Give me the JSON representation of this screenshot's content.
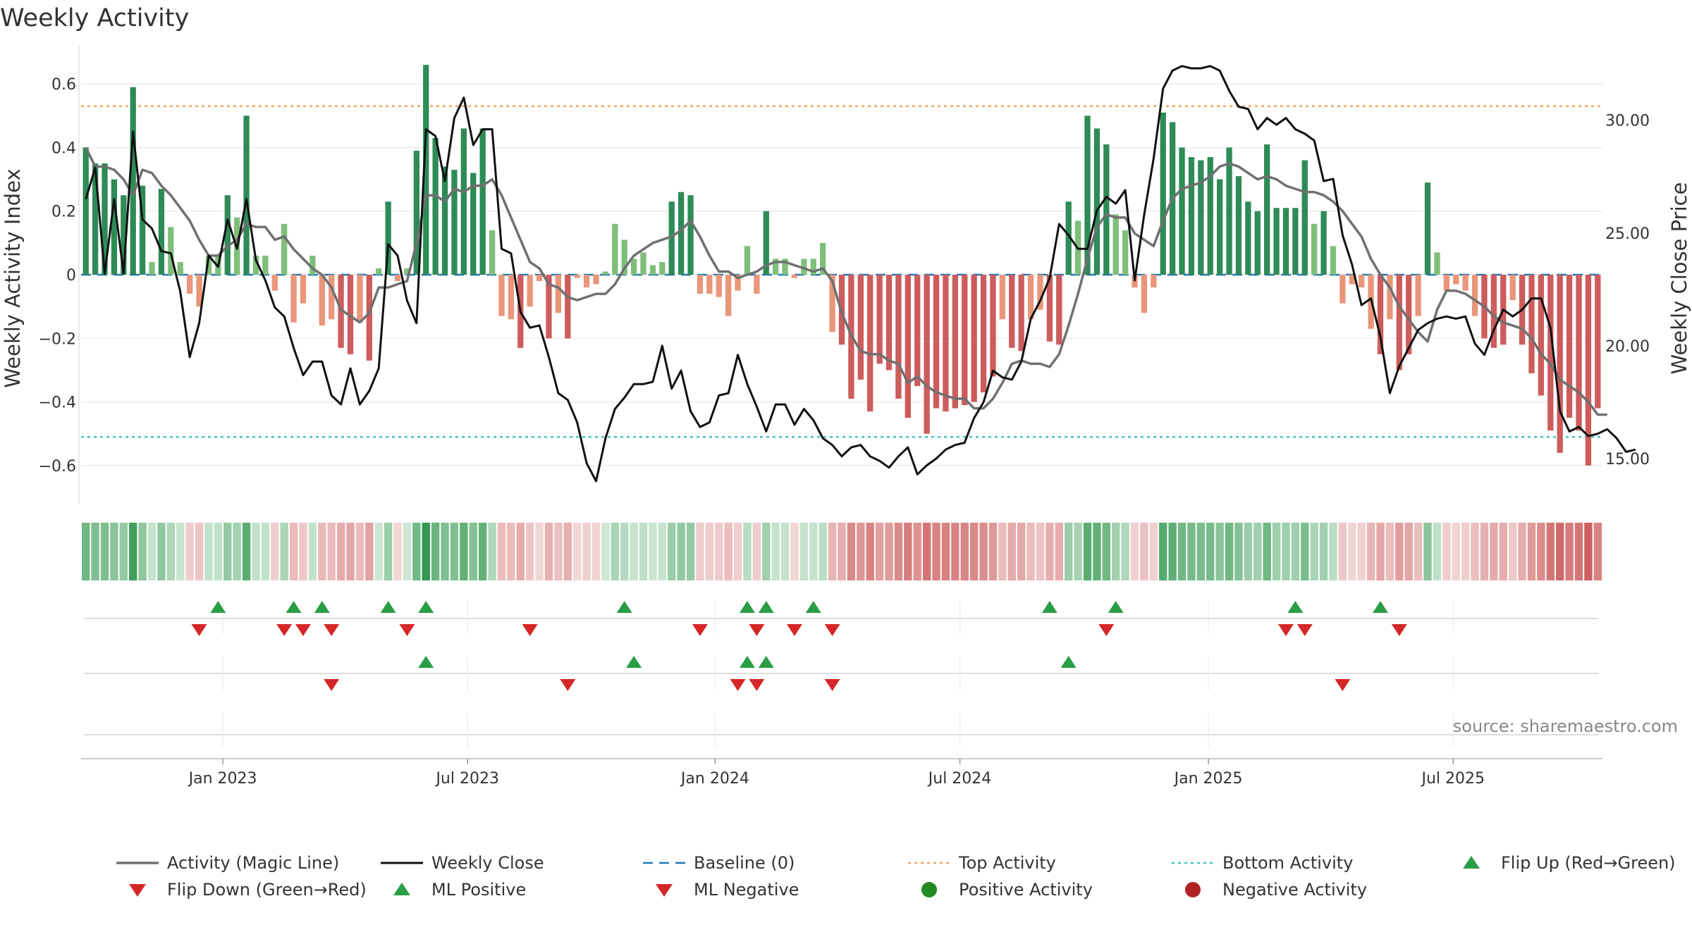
{
  "title": "Weekly Activity",
  "source": "source: sharemaestro.com",
  "colors": {
    "strong_green": "#2e8b57",
    "light_green": "#7fbf7b",
    "strong_red": "#cd5c5c",
    "light_red": "#e9967a",
    "magic_line": "#707070",
    "close_line": "#111111",
    "baseline": "#1f77b4",
    "top": "#f4a460",
    "bottom": "#40c4c4",
    "marker_green": "#2a9d46",
    "marker_red": "#d62728",
    "pos_dot": "#228b22",
    "neg_dot": "#b22222"
  },
  "chart_data": {
    "type": "bar+line",
    "title": "Weekly Activity",
    "ylabel": "Weekly Activity Index",
    "y2label": "Weekly Close Price",
    "ylim": [
      -0.72,
      0.72
    ],
    "y2lim": [
      13.0,
      33.3
    ],
    "yticks": [
      0.6,
      0.4,
      0.2,
      0,
      -0.2,
      -0.4,
      -0.6
    ],
    "ytick_labels": [
      "0.6",
      "0.4",
      "0.2",
      "0",
      "−0.2",
      "−0.4",
      "−0.6"
    ],
    "y2ticks": [
      30,
      25,
      20,
      15
    ],
    "y2tick_labels": [
      "30.00",
      "25.00",
      "20.00",
      "15.00"
    ],
    "xticks": [
      {
        "label": "Jan 2023",
        "week": 14.5
      },
      {
        "label": "Jul 2023",
        "week": 40.4
      },
      {
        "label": "Jan 2024",
        "week": 66.6
      },
      {
        "label": "Jul 2024",
        "week": 92.5
      },
      {
        "label": "Jan 2025",
        "week": 118.8
      },
      {
        "label": "Jul 2025",
        "week": 144.7
      }
    ],
    "top_activity": 0.53,
    "bottom_activity": -0.51,
    "baseline": 0,
    "activity": [
      0.4,
      0.35,
      0.35,
      0.3,
      0.25,
      0.59,
      0.28,
      0.04,
      0.27,
      0.15,
      0.04,
      -0.06,
      -0.1,
      0.06,
      0.06,
      0.25,
      0.18,
      0.5,
      0.06,
      0.06,
      -0.05,
      0.16,
      -0.15,
      -0.09,
      0.06,
      -0.16,
      -0.14,
      -0.23,
      -0.25,
      -0.15,
      -0.27,
      0.02,
      0.23,
      -0.02,
      0.02,
      0.39,
      0.66,
      0.43,
      0.34,
      0.33,
      0.46,
      0.32,
      0.46,
      0.14,
      -0.13,
      -0.14,
      -0.23,
      -0.1,
      -0.02,
      -0.2,
      -0.12,
      -0.2,
      -0.01,
      -0.04,
      -0.03,
      0.01,
      0.16,
      0.11,
      0.05,
      0.07,
      0.03,
      0.04,
      0.23,
      0.26,
      0.25,
      -0.06,
      -0.06,
      -0.07,
      -0.13,
      -0.05,
      0.09,
      -0.06,
      0.2,
      0.05,
      0.05,
      -0.01,
      0.05,
      0.05,
      0.1,
      -0.18,
      -0.22,
      -0.39,
      -0.33,
      -0.43,
      -0.28,
      -0.3,
      -0.39,
      -0.45,
      -0.35,
      -0.5,
      -0.42,
      -0.43,
      -0.42,
      -0.41,
      -0.4,
      -0.37,
      -0.32,
      -0.14,
      -0.23,
      -0.24,
      -0.14,
      -0.11,
      -0.21,
      -0.22,
      0.23,
      0.17,
      0.5,
      0.46,
      0.41,
      0.19,
      0.14,
      -0.04,
      -0.12,
      -0.04,
      0.51,
      0.48,
      0.4,
      0.37,
      0.36,
      0.37,
      0.3,
      0.4,
      0.31,
      0.23,
      0.2,
      0.41,
      0.21,
      0.21,
      0.21,
      0.36,
      0.16,
      0.2,
      0.09,
      -0.09,
      -0.03,
      -0.04,
      -0.17,
      -0.25,
      -0.14,
      -0.3,
      -0.25,
      -0.13,
      0.29,
      0.07,
      -0.05,
      -0.03,
      -0.05,
      -0.13,
      -0.2,
      -0.23,
      -0.22,
      -0.08,
      -0.22,
      -0.31,
      -0.38,
      -0.49,
      -0.56,
      -0.45,
      -0.49,
      -0.6,
      -0.42
    ],
    "magic_line": [
      0.4,
      0.34,
      0.34,
      0.33,
      0.3,
      0.25,
      0.33,
      0.32,
      0.28,
      0.25,
      0.21,
      0.17,
      0.11,
      0.06,
      0.06,
      0.09,
      0.11,
      0.16,
      0.15,
      0.15,
      0.11,
      0.12,
      0.08,
      0.05,
      0.02,
      0.0,
      -0.04,
      -0.11,
      -0.13,
      -0.15,
      -0.12,
      -0.04,
      -0.04,
      -0.03,
      -0.02,
      0.1,
      0.25,
      0.25,
      0.23,
      0.27,
      0.26,
      0.28,
      0.28,
      0.3,
      0.25,
      0.18,
      0.11,
      0.04,
      0.02,
      -0.03,
      -0.04,
      -0.07,
      -0.08,
      -0.07,
      -0.06,
      -0.06,
      -0.03,
      0.02,
      0.06,
      0.08,
      0.1,
      0.11,
      0.12,
      0.14,
      0.17,
      0.12,
      0.06,
      0.01,
      0.01,
      -0.01,
      0.0,
      0.01,
      0.03,
      0.04,
      0.04,
      0.03,
      0.02,
      0.01,
      0.02,
      -0.02,
      -0.12,
      -0.19,
      -0.24,
      -0.25,
      -0.25,
      -0.27,
      -0.28,
      -0.34,
      -0.32,
      -0.35,
      -0.37,
      -0.38,
      -0.39,
      -0.39,
      -0.42,
      -0.42,
      -0.39,
      -0.34,
      -0.28,
      -0.27,
      -0.28,
      -0.28,
      -0.29,
      -0.25,
      -0.16,
      -0.06,
      0.05,
      0.15,
      0.19,
      0.18,
      0.18,
      0.13,
      0.11,
      0.09,
      0.17,
      0.24,
      0.27,
      0.28,
      0.29,
      0.31,
      0.34,
      0.35,
      0.34,
      0.32,
      0.3,
      0.31,
      0.3,
      0.28,
      0.27,
      0.26,
      0.26,
      0.25,
      0.23,
      0.2,
      0.16,
      0.12,
      0.05,
      -0.0,
      -0.04,
      -0.1,
      -0.14,
      -0.18,
      -0.21,
      -0.11,
      -0.05,
      -0.05,
      -0.06,
      -0.08,
      -0.1,
      -0.13,
      -0.15,
      -0.16,
      -0.17,
      -0.2,
      -0.25,
      -0.28,
      -0.33,
      -0.35,
      -0.37,
      -0.4,
      -0.44,
      -0.44
    ],
    "close": [
      26.5,
      27.9,
      23.2,
      26.5,
      23.2,
      29.5,
      25.6,
      25.2,
      24.2,
      24.1,
      22.4,
      19.5,
      21.0,
      24.0,
      23.5,
      25.6,
      24.3,
      26.5,
      23.8,
      22.9,
      21.7,
      21.3,
      19.9,
      18.7,
      19.3,
      19.3,
      17.8,
      17.4,
      19.0,
      17.4,
      18.0,
      19.0,
      24.5,
      24.0,
      22.0,
      21.0,
      29.6,
      29.3,
      27.3,
      30.1,
      31.0,
      28.9,
      29.6,
      29.6,
      24.3,
      24.1,
      21.5,
      20.8,
      20.9,
      19.5,
      17.9,
      17.6,
      16.6,
      14.8,
      14.0,
      15.9,
      17.2,
      17.7,
      18.3,
      18.3,
      18.4,
      20.0,
      18.1,
      18.9,
      17.1,
      16.4,
      16.6,
      17.8,
      17.9,
      19.6,
      18.3,
      17.3,
      16.2,
      17.4,
      17.4,
      16.5,
      17.2,
      16.7,
      15.9,
      15.6,
      15.1,
      15.5,
      15.6,
      15.1,
      14.9,
      14.6,
      15.1,
      15.5,
      14.3,
      14.7,
      15.0,
      15.4,
      15.6,
      15.7,
      16.8,
      17.5,
      18.9,
      18.6,
      18.5,
      19.3,
      21.2,
      22.0,
      23.0,
      25.4,
      24.9,
      24.3,
      24.3,
      26.0,
      26.6,
      26.3,
      26.9,
      22.9,
      25.8,
      28.3,
      31.4,
      32.2,
      32.4,
      32.3,
      32.3,
      32.4,
      32.2,
      31.3,
      30.6,
      30.5,
      29.6,
      30.1,
      29.8,
      30.1,
      29.6,
      29.4,
      29.1,
      27.3,
      27.4,
      24.9,
      23.6,
      21.8,
      22.1,
      20.4,
      17.9,
      19.1,
      19.9,
      20.7,
      21.0,
      21.2,
      21.3,
      21.2,
      21.3,
      20.1,
      19.6,
      20.7,
      21.6,
      21.3,
      21.6,
      22.1,
      22.1,
      20.8,
      17.1,
      16.2,
      16.4,
      16.0,
      16.1,
      16.3,
      15.9,
      15.3,
      15.4
    ],
    "heatmap_strip": "weekly activity colour strip (one cell per week, green = positive, red = negative)",
    "flip_up_weeks": [
      14,
      22,
      25,
      32,
      36,
      57,
      70,
      72,
      77,
      102,
      109,
      128,
      137
    ],
    "flip_down_weeks": [
      12,
      21,
      23,
      26,
      34,
      47,
      65,
      71,
      75,
      79,
      108,
      127,
      129,
      139
    ],
    "ml_positive_weeks": [
      36,
      58,
      70,
      72,
      104
    ],
    "ml_negative_weeks": [
      26,
      51,
      69,
      71,
      79,
      133
    ],
    "positive_activity_weeks": [],
    "negative_activity_weeks": []
  },
  "legend": [
    {
      "label": "Activity (Magic Line)",
      "kind": "line-solid-gray"
    },
    {
      "label": "Weekly Close",
      "kind": "line-solid-black"
    },
    {
      "label": "Baseline (0)",
      "kind": "line-dashed-blue"
    },
    {
      "label": "Top Activity",
      "kind": "line-dotted-orange"
    },
    {
      "label": "Bottom Activity",
      "kind": "line-dotted-teal"
    },
    {
      "label": "Flip Up (Red→Green)",
      "kind": "triangle-up-green"
    },
    {
      "label": "Flip Down (Green→Red)",
      "kind": "triangle-down-red"
    },
    {
      "label": "ML Positive",
      "kind": "triangle-up-green"
    },
    {
      "label": "ML Negative",
      "kind": "triangle-down-red"
    },
    {
      "label": "Positive Activity",
      "kind": "dot-green"
    },
    {
      "label": "Negative Activity",
      "kind": "dot-darkred"
    }
  ]
}
